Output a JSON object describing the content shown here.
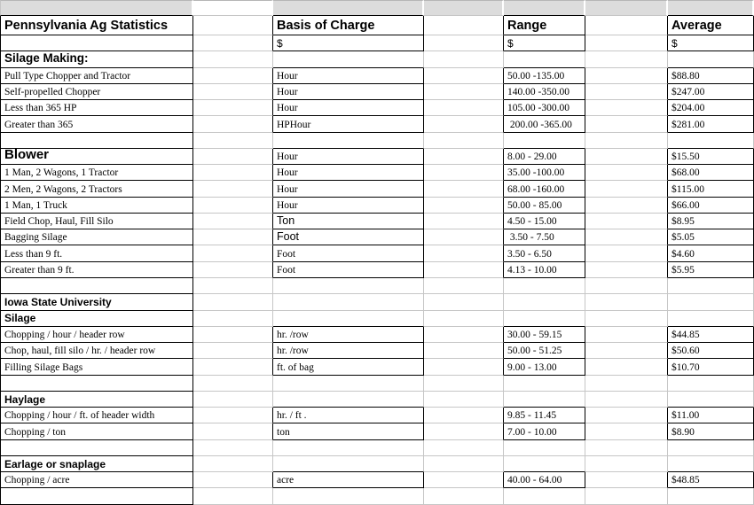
{
  "sheet_title": "Pennsylvania Ag Statistics",
  "colors": {
    "gridline": "#c6c6c6",
    "dark_border": "#000000",
    "top_strip_fill": "#dcdcdc",
    "text": "#000000"
  },
  "grid": {
    "column_headers": [
      "Pennsylvania Ag Statistics",
      "Basis of Charge",
      "Range",
      "Average"
    ],
    "rows": [
      {},
      {
        "type": "header",
        "a": "Pennsylvania Ag Statistics",
        "c": "Basis of Charge",
        "e": "Range",
        "g": "Average"
      },
      {
        "c": "$",
        "e": "$",
        "g": "$",
        "c_style": "currency",
        "e_style": "currency",
        "g_style": "currency"
      },
      {
        "a": "Silage Making:",
        "a_style": "section13"
      },
      {
        "a": "Pull Type Chopper and Tractor",
        "c": "Hour",
        "e": "50.00 -135.00",
        "g": "$88.80"
      },
      {
        "a": "Self-propelled Chopper",
        "c": "Hour",
        "e": "140.00 -350.00",
        "g": "$247.00"
      },
      {
        "a": "Less than 365 HP",
        "c": "Hour",
        "e": "105.00 -300.00",
        "g": "$204.00"
      },
      {
        "a": "Greater than 365",
        "c": "HPHour",
        "e": " 200.00 -365.00",
        "g": "$281.00"
      },
      {},
      {
        "a": "Blower",
        "a_style": "section15",
        "c": "Hour",
        "e": "8.00 - 29.00",
        "g": "$15.50"
      },
      {
        "a": "1 Man, 2 Wagons, 1 Tractor",
        "c": "Hour",
        "e": "35.00 -100.00",
        "g": "$68.00"
      },
      {
        "a": "2 Men, 2 Wagons, 2 Tractors",
        "c": "Hour",
        "e": "68.00 -160.00",
        "g": "$115.00"
      },
      {
        "a": "1 Man, 1 Truck",
        "c": "Hour",
        "e": "50.00 - 85.00",
        "g": "$66.00"
      },
      {
        "a": "Field Chop, Haul, Fill Silo",
        "c": "Ton",
        "c_style": "sans",
        "e": "4.50 - 15.00",
        "g": "$8.95"
      },
      {
        "a": "Bagging Silage",
        "c": "Foot",
        "c_style": "sans",
        "e": " 3.50 - 7.50",
        "g": "$5.05"
      },
      {
        "a": "Less than 9 ft.",
        "c": "Foot",
        "e": "3.50 - 6.50",
        "g": "$4.60"
      },
      {
        "a": "Greater than 9 ft.",
        "c": "Foot",
        "e": "4.13 - 10.00",
        "g": "$5.95"
      },
      {},
      {
        "a": "Iowa State University",
        "a_style": "subsection"
      },
      {
        "a": "Silage",
        "a_style": "subsection"
      },
      {
        "a": "Chopping / hour / header row",
        "c": "hr. /row",
        "e": "30.00 - 59.15",
        "g": "$44.85"
      },
      {
        "a": "Chop, haul, fill silo / hr. / header row",
        "c": "hr. /row",
        "e": "50.00 - 51.25",
        "g": "$50.60"
      },
      {
        "a": "Filling Silage Bags",
        "c": "ft. of bag",
        "e": "9.00 - 13.00",
        "g": "$10.70"
      },
      {},
      {
        "a": "Haylage",
        "a_style": "subsection"
      },
      {
        "a": "Chopping / hour / ft. of header width",
        "c": "hr. / ft .",
        "e": "9.85 - 11.45",
        "g": "$11.00"
      },
      {
        "a": "Chopping / ton",
        "c": "ton",
        "e": "7.00 - 10.00",
        "g": "$8.90"
      },
      {},
      {
        "a": "Earlage or snaplage",
        "a_style": "subsection"
      },
      {
        "a": "Chopping / acre",
        "c": "acre",
        "e": "40.00 - 64.00",
        "g": "$48.85"
      },
      {}
    ]
  }
}
